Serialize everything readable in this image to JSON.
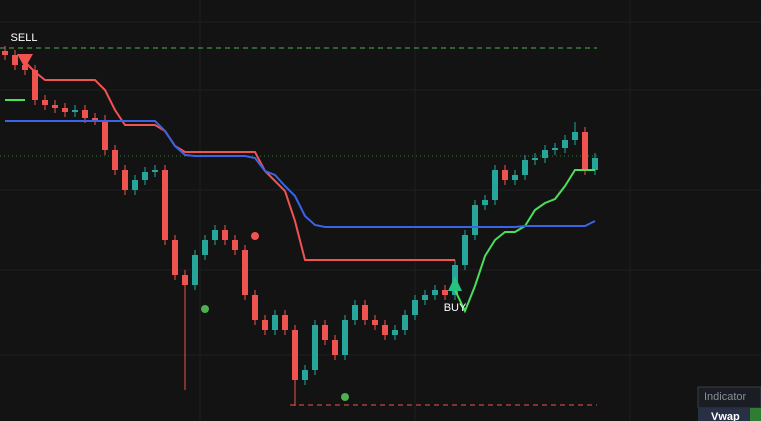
{
  "chart_data": {
    "type": "candlestick",
    "categories": [
      null,
      null,
      null,
      null,
      null,
      null,
      null,
      null,
      null,
      null,
      null,
      null,
      null,
      null,
      null,
      null,
      null,
      null,
      null,
      null,
      null,
      null,
      null,
      null,
      null,
      null,
      null,
      null,
      null,
      null,
      null,
      null,
      null,
      null,
      null,
      null,
      null,
      null,
      null,
      null,
      null,
      null,
      null,
      null,
      null,
      null,
      null,
      null,
      null,
      null,
      null,
      null,
      null,
      null,
      null,
      null,
      null,
      null,
      null,
      null
    ],
    "open": [
      370,
      366,
      356,
      351,
      321,
      316,
      313,
      309,
      311,
      303,
      301,
      271,
      251,
      231,
      241,
      249,
      251,
      181,
      146,
      136,
      166,
      181,
      191,
      181,
      171,
      126,
      101,
      91,
      106,
      91,
      41,
      51,
      96,
      81,
      66,
      101,
      116,
      101,
      96,
      86,
      91,
      106,
      121,
      126,
      131,
      126,
      156,
      186,
      216,
      221,
      251,
      241,
      246,
      261,
      263,
      271,
      273,
      281,
      289,
      251
    ],
    "high": [
      375,
      371,
      361,
      356,
      326,
      321,
      318,
      316,
      316,
      308,
      306,
      276,
      256,
      246,
      254,
      256,
      256,
      186,
      151,
      171,
      186,
      196,
      196,
      186,
      176,
      131,
      106,
      111,
      111,
      96,
      56,
      101,
      101,
      86,
      106,
      121,
      121,
      106,
      101,
      96,
      111,
      126,
      131,
      136,
      136,
      161,
      191,
      221,
      226,
      256,
      256,
      251,
      266,
      268,
      276,
      278,
      286,
      299,
      294,
      268
    ],
    "low": [
      361,
      351,
      346,
      316,
      311,
      308,
      304,
      304,
      298,
      296,
      266,
      246,
      226,
      226,
      236,
      244,
      176,
      141,
      31,
      131,
      161,
      176,
      176,
      166,
      121,
      96,
      86,
      86,
      86,
      15,
      36,
      46,
      76,
      61,
      61,
      96,
      96,
      91,
      81,
      81,
      86,
      101,
      116,
      121,
      121,
      121,
      151,
      181,
      211,
      216,
      236,
      236,
      241,
      256,
      258,
      266,
      268,
      276,
      246,
      246
    ],
    "close": [
      366,
      356,
      351,
      321,
      316,
      313,
      309,
      311,
      303,
      301,
      271,
      251,
      231,
      241,
      249,
      251,
      181,
      146,
      136,
      166,
      181,
      191,
      181,
      171,
      126,
      101,
      91,
      106,
      91,
      41,
      51,
      96,
      81,
      66,
      101,
      116,
      101,
      96,
      86,
      91,
      106,
      121,
      126,
      131,
      126,
      156,
      186,
      216,
      221,
      251,
      241,
      246,
      261,
      263,
      271,
      273,
      281,
      289,
      251,
      263
    ],
    "up_color": "#26a69a",
    "down_color": "#ef5350",
    "ylim": [
      0,
      421
    ],
    "series": [
      {
        "color": "#f05350",
        "values": [
          null,
          null,
          359,
          349,
          341,
          341,
          341,
          341,
          341,
          341,
          331,
          311,
          296,
          296,
          296,
          296,
          290,
          275,
          269,
          269,
          269,
          269,
          269,
          269,
          269,
          269,
          250,
          240,
          230,
          200,
          161,
          161,
          161,
          161,
          161,
          161,
          161,
          161,
          161,
          161,
          161,
          161,
          161,
          161,
          161,
          161,
          null,
          null,
          null,
          null,
          null,
          null,
          null,
          null,
          null,
          null,
          null,
          null,
          null,
          null
        ]
      },
      {
        "color": "#4ade5a",
        "values": [
          321,
          321,
          321,
          null,
          null,
          null,
          null,
          null,
          null,
          null,
          null,
          null,
          null,
          null,
          null,
          null,
          null,
          null,
          null,
          null,
          null,
          null,
          null,
          null,
          null,
          null,
          null,
          null,
          null,
          null,
          null,
          null,
          null,
          null,
          null,
          null,
          null,
          null,
          null,
          null,
          null,
          null,
          null,
          null,
          null,
          131,
          110,
          135,
          165,
          181,
          189,
          189,
          195,
          211,
          218,
          222,
          235,
          251,
          251,
          251
        ]
      },
      {
        "color": "#3a63e6",
        "values": [
          300,
          300,
          300,
          300,
          300,
          300,
          300,
          300,
          300,
          300,
          300,
          300,
          300,
          300,
          300,
          300,
          290,
          275,
          266,
          265,
          265,
          265,
          265,
          265,
          265,
          263,
          250,
          246,
          235,
          225,
          205,
          196,
          194,
          194,
          194,
          194,
          194,
          194,
          194,
          194,
          194,
          194,
          194,
          194,
          194,
          194,
          194,
          194,
          194,
          194,
          194,
          194,
          195,
          195,
          195,
          195,
          195,
          195,
          195,
          200
        ]
      }
    ],
    "signals": [
      {
        "label": "SELL",
        "x": 2,
        "value": 359,
        "color": "#f05350"
      },
      {
        "label": "BUY",
        "x": 45,
        "value": 136,
        "color": "#26c281"
      }
    ],
    "dots": [
      {
        "x": 25,
        "value": 185,
        "color": "#f05350"
      },
      {
        "x": 20,
        "value": 112,
        "color": "#4caf50"
      },
      {
        "x": 34,
        "value": 24,
        "color": "#4caf50"
      }
    ],
    "levels": [
      {
        "value": 373,
        "color": "#4caf50",
        "style": "dashed",
        "start": 0
      },
      {
        "value": 265,
        "color": "#2e7d32",
        "style": "dotted",
        "start": 0
      },
      {
        "value": 16,
        "color": "#ef5350",
        "style": "dashed",
        "start": 29
      }
    ],
    "table": {
      "header": "Indicator",
      "row": "Vwap"
    }
  }
}
